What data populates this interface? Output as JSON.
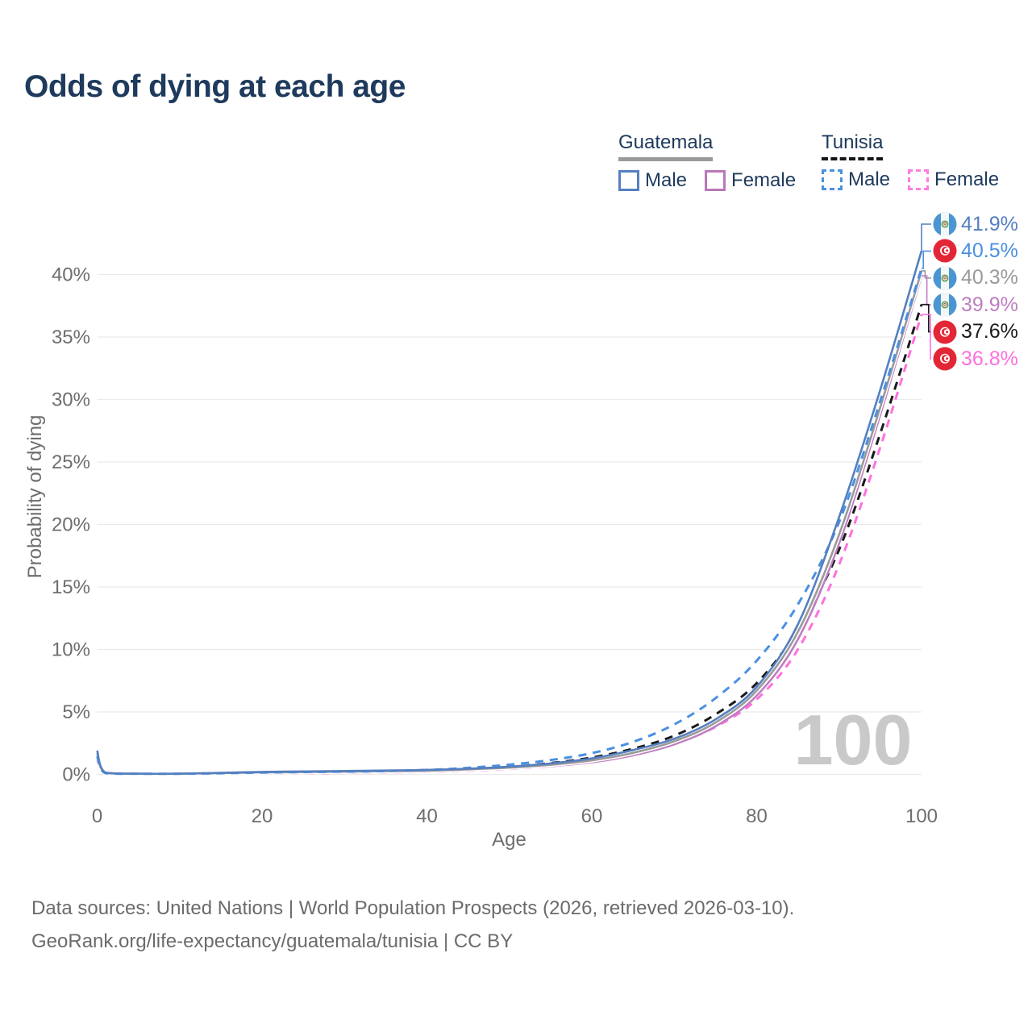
{
  "title": "Odds of dying at each age",
  "legend": {
    "groups": [
      {
        "country": "Guatemala",
        "line_style": "solid",
        "underline_color": "#9a9a9a",
        "items": [
          {
            "label": "Male",
            "color": "#557fc0",
            "dashed": false
          },
          {
            "label": "Female",
            "color": "#b878b8",
            "dashed": false
          }
        ]
      },
      {
        "country": "Tunisia",
        "line_style": "dashed",
        "underline_color": "#161616",
        "items": [
          {
            "label": "Male",
            "color": "#4a90e2",
            "dashed": true
          },
          {
            "label": "Female",
            "color": "#ff7ce0",
            "dashed": true
          }
        ]
      }
    ]
  },
  "chart_data": {
    "type": "line",
    "title": "Odds of dying at each age",
    "xlabel": "Age",
    "ylabel": "Probability of dying",
    "x_ticks": [
      0,
      20,
      40,
      60,
      80,
      100
    ],
    "y_ticks": [
      "0%",
      "5%",
      "10%",
      "15%",
      "20%",
      "25%",
      "30%",
      "35%",
      "40%"
    ],
    "xlim": [
      0,
      100
    ],
    "ylim": [
      0,
      43.5
    ],
    "grid": "horizontal",
    "legend_position": "top-right",
    "watermark": "100",
    "x": [
      0,
      1,
      5,
      10,
      15,
      20,
      25,
      30,
      35,
      40,
      45,
      50,
      55,
      60,
      65,
      70,
      75,
      80,
      85,
      90,
      95,
      100
    ],
    "series": [
      {
        "id": "guatemala-male",
        "name": "Guatemala Male",
        "country": "Guatemala",
        "sex": "Male",
        "flag": "guatemala",
        "color": "#557fc0",
        "dash": "solid",
        "values": [
          1.9,
          0.15,
          0.06,
          0.06,
          0.12,
          0.2,
          0.24,
          0.27,
          0.31,
          0.36,
          0.46,
          0.62,
          0.88,
          1.28,
          1.95,
          2.85,
          4.4,
          7.0,
          12.0,
          20.6,
          30.8,
          41.9
        ],
        "end_label": "41.9%"
      },
      {
        "id": "tunisia-male",
        "name": "Tunisia Male",
        "country": "Tunisia",
        "sex": "Male",
        "flag": "tunisia",
        "color": "#4a90e2",
        "dash": "dashed",
        "values": [
          1.45,
          0.1,
          0.05,
          0.05,
          0.09,
          0.15,
          0.19,
          0.22,
          0.27,
          0.36,
          0.52,
          0.78,
          1.15,
          1.7,
          2.6,
          4.0,
          6.1,
          9.1,
          13.6,
          20.2,
          29.9,
          40.5
        ],
        "end_label": "40.5%"
      },
      {
        "id": "guatemala-both",
        "name": "Guatemala Both sexes",
        "country": "Guatemala",
        "sex": "Both",
        "flag": "guatemala",
        "color": "#9a9a9a",
        "dash": "solid",
        "casing": true,
        "values": [
          1.7,
          0.13,
          0.05,
          0.05,
          0.1,
          0.16,
          0.19,
          0.22,
          0.26,
          0.3,
          0.4,
          0.54,
          0.77,
          1.12,
          1.72,
          2.65,
          4.15,
          6.7,
          11.4,
          19.2,
          29.4,
          40.3
        ],
        "end_label": "40.3%"
      },
      {
        "id": "guatemala-female",
        "name": "Guatemala Female",
        "country": "Guatemala",
        "sex": "Female",
        "flag": "guatemala",
        "color": "#bd7ec0",
        "dash": "solid",
        "values": [
          1.5,
          0.11,
          0.05,
          0.05,
          0.08,
          0.11,
          0.14,
          0.17,
          0.21,
          0.26,
          0.34,
          0.47,
          0.66,
          0.97,
          1.52,
          2.4,
          3.85,
          6.3,
          10.8,
          18.5,
          28.8,
          39.9
        ],
        "end_label": "39.9%"
      },
      {
        "id": "tunisia-both",
        "name": "Tunisia Both sexes",
        "country": "Tunisia",
        "sex": "Both",
        "flag": "tunisia",
        "color": "#1a1a1a",
        "dash": "dashed",
        "values": [
          1.3,
          0.09,
          0.04,
          0.04,
          0.07,
          0.11,
          0.14,
          0.17,
          0.21,
          0.28,
          0.4,
          0.6,
          0.9,
          1.35,
          2.05,
          3.1,
          4.8,
          7.3,
          11.6,
          18.0,
          27.3,
          37.6
        ],
        "end_label": "37.6%"
      },
      {
        "id": "tunisia-female",
        "name": "Tunisia Female",
        "country": "Tunisia",
        "sex": "Female",
        "flag": "tunisia",
        "color": "#ff70dd",
        "dash": "dashed",
        "values": [
          1.15,
          0.08,
          0.04,
          0.04,
          0.06,
          0.08,
          0.1,
          0.13,
          0.16,
          0.21,
          0.3,
          0.44,
          0.66,
          1.0,
          1.55,
          2.45,
          3.8,
          6.0,
          10.0,
          16.8,
          26.2,
          36.8
        ],
        "end_label": "36.8%"
      }
    ]
  },
  "footer": {
    "line1": "Data sources: United Nations | World Population Prospects (2026, retrieved 2026-03-10).",
    "line2": "GeoRank.org/life-expectancy/guatemala/tunisia | CC BY"
  }
}
